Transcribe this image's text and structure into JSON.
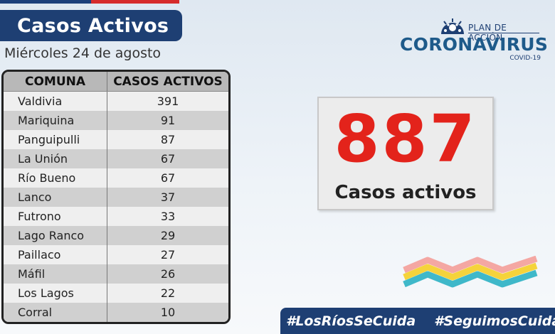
{
  "header": {
    "title": "Casos Activos",
    "date": "Miércoles 24 de agosto"
  },
  "table": {
    "headers": [
      "COMUNA",
      "CASOS ACTIVOS"
    ],
    "rows": [
      {
        "comuna": "Valdivia",
        "casos": "391"
      },
      {
        "comuna": "Mariquina",
        "casos": "91"
      },
      {
        "comuna": "Panguipulli",
        "casos": "87"
      },
      {
        "comuna": "La Unión",
        "casos": "67"
      },
      {
        "comuna": "Río Bueno",
        "casos": "67"
      },
      {
        "comuna": "Lanco",
        "casos": "37"
      },
      {
        "comuna": "Futrono",
        "casos": "33"
      },
      {
        "comuna": "Lago Ranco",
        "casos": "29"
      },
      {
        "comuna": "Paillaco",
        "casos": "27"
      },
      {
        "comuna": "Máfil",
        "casos": "26"
      },
      {
        "comuna": "Los Lagos",
        "casos": "22"
      },
      {
        "comuna": "Corral",
        "casos": "10"
      }
    ]
  },
  "logo": {
    "plan": "PLAN DE ACCIÓN",
    "name": "CORONAVIRUS",
    "sub": "COVID-19",
    "icon": "virus-icon"
  },
  "stat": {
    "value": "887",
    "label": "Casos activos"
  },
  "hashtags": [
    "#LosRíosSeCuida",
    "#SeguimosCuidándonos"
  ],
  "colors": {
    "navy": "#1e3f73",
    "red": "#e3231b",
    "stripe_pink": "#f4a7a3",
    "stripe_yellow": "#f5d33b",
    "stripe_teal": "#3fb8c9"
  }
}
